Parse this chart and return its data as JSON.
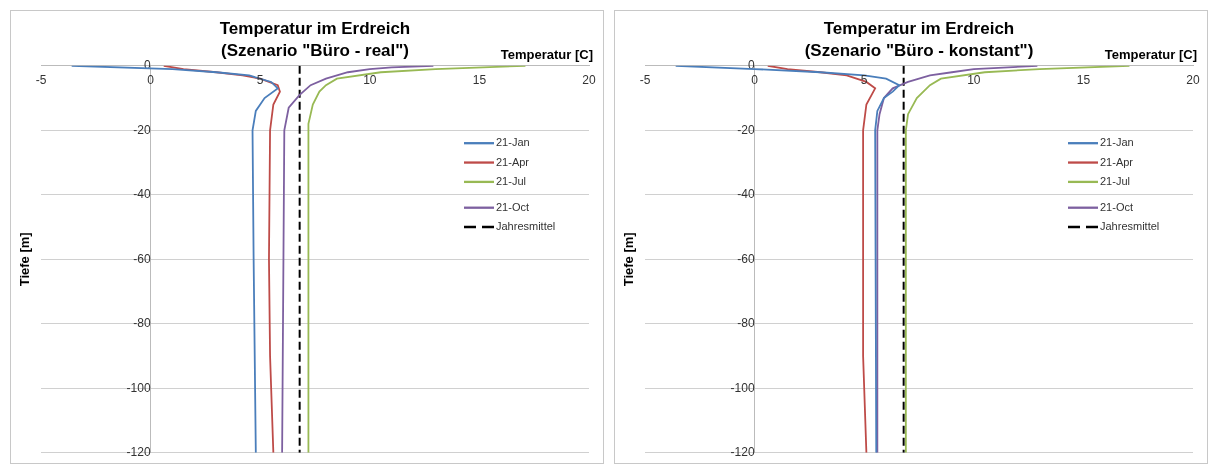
{
  "chart_data": [
    {
      "type": "line",
      "title": "Temperatur im Erdreich",
      "subtitle": "(Szenario \"Büro - real\")",
      "xlabel": "Temperatur [C]",
      "ylabel": "Tiefe [m]",
      "xlim": [
        -5,
        20
      ],
      "ylim": [
        -120,
        0
      ],
      "xticks": [
        -5,
        0,
        5,
        10,
        15,
        20
      ],
      "yticks": [
        -120,
        -100,
        -80,
        -60,
        -40,
        -20,
        0
      ],
      "grid": "y",
      "legend": "right",
      "series": [
        {
          "name": "21-Jan",
          "color": "#4a7ebb",
          "x": [
            -3.6,
            1,
            3,
            4.5,
            5.5,
            5.8,
            5.2,
            4.8,
            4.65,
            4.7,
            4.8
          ],
          "values": [
            0,
            -1,
            -2,
            -3,
            -5,
            -7,
            -10,
            -14,
            -20,
            -60,
            -120
          ]
        },
        {
          "name": "21-Apr",
          "color": "#be4b48",
          "x": [
            0.6,
            1.5,
            3,
            4.2,
            5,
            5.8,
            5.9,
            5.6,
            5.45,
            5.4,
            5.45,
            5.6
          ],
          "values": [
            0,
            -1,
            -2,
            -3,
            -4,
            -6,
            -8,
            -12,
            -20,
            -60,
            -90,
            -120
          ]
        },
        {
          "name": "21-Jul",
          "color": "#98b954",
          "x": [
            17.1,
            13,
            10.5,
            8.5,
            8,
            7.7,
            7.4,
            7.2,
            7.2
          ],
          "values": [
            0,
            -1,
            -2,
            -4,
            -6,
            -8,
            -12,
            -18,
            -120
          ]
        },
        {
          "name": "21-Oct",
          "color": "#7d60a0",
          "x": [
            12.9,
            11,
            10,
            9,
            8,
            7.3,
            6.8,
            6.3,
            6.1,
            6.0
          ],
          "values": [
            0,
            -0.5,
            -1,
            -2,
            -4,
            -6,
            -9,
            -13,
            -20,
            -120
          ]
        },
        {
          "name": "Jahresmittel",
          "color": "#000000",
          "line_style": "dashed",
          "x": [
            6.8,
            6.8
          ],
          "values": [
            0,
            -120
          ]
        }
      ]
    },
    {
      "type": "line",
      "title": "Temperatur im Erdreich",
      "subtitle": "(Szenario \"Büro - konstant\")",
      "xlabel": "Temperatur [C]",
      "ylabel": "Tiefe [m]",
      "xlim": [
        -5,
        20
      ],
      "ylim": [
        -120,
        0
      ],
      "xticks": [
        -5,
        0,
        5,
        10,
        15,
        20
      ],
      "yticks": [
        -120,
        -100,
        -80,
        -60,
        -40,
        -20,
        0
      ],
      "grid": "y",
      "legend": "right",
      "series": [
        {
          "name": "21-Jan",
          "color": "#4a7ebb",
          "x": [
            -3.6,
            0,
            3,
            5,
            6,
            6.6,
            6.3,
            5.9,
            5.6,
            5.5,
            5.55
          ],
          "values": [
            0,
            -1,
            -2,
            -3,
            -4,
            -6,
            -8,
            -10,
            -14,
            -20,
            -120
          ]
        },
        {
          "name": "21-Apr",
          "color": "#be4b48",
          "x": [
            0.6,
            1.5,
            3,
            4.2,
            5.1,
            5.5,
            5.1,
            4.95,
            4.95,
            5.1
          ],
          "values": [
            0,
            -1,
            -2,
            -3,
            -5,
            -7,
            -12,
            -20,
            -90,
            -120
          ]
        },
        {
          "name": "21-Jul",
          "color": "#98b954",
          "x": [
            17.1,
            13,
            10.5,
            8.5,
            8,
            7.4,
            7,
            6.9,
            6.9
          ],
          "values": [
            0,
            -1,
            -2,
            -4,
            -6,
            -10,
            -15,
            -20,
            -120
          ]
        },
        {
          "name": "21-Oct",
          "color": "#7d60a0",
          "x": [
            12.9,
            10,
            9,
            8,
            7,
            6.3,
            5.9,
            5.7,
            5.6,
            5.6
          ],
          "values": [
            0,
            -1,
            -2,
            -3,
            -5,
            -7,
            -10,
            -15,
            -20,
            -120
          ]
        },
        {
          "name": "Jahresmittel",
          "color": "#000000",
          "line_style": "dashed",
          "x": [
            6.8,
            6.8
          ],
          "values": [
            0,
            -120
          ]
        }
      ]
    }
  ]
}
